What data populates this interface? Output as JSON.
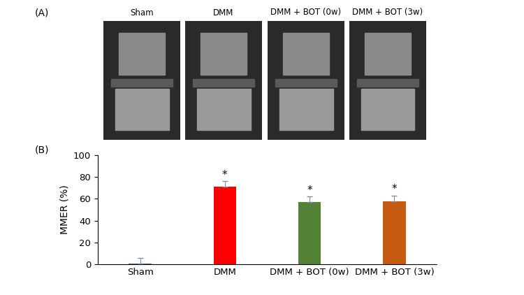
{
  "panel_a": {
    "label": "(A)",
    "captions": [
      "Sham",
      "DMM",
      "DMM + BOT (0w)",
      "DMM + BOT (3w)"
    ]
  },
  "chart_data": {
    "type": "bar",
    "panel_label": "(B)",
    "categories": [
      "Sham",
      "DMM",
      "DMM + BOT (0w)",
      "DMM + BOT (3w)"
    ],
    "values": [
      0.5,
      71,
      57,
      58
    ],
    "errors": [
      5,
      5,
      5,
      5
    ],
    "significance": [
      null,
      "*",
      "*",
      "*"
    ],
    "colors": [
      "#4472c4",
      "#ff0000",
      "#548235",
      "#c55a11"
    ],
    "y_label": "MMER (%)",
    "ylim": [
      0,
      100
    ],
    "yticks": [
      0,
      20,
      40,
      60,
      80,
      100
    ],
    "grid": false
  }
}
